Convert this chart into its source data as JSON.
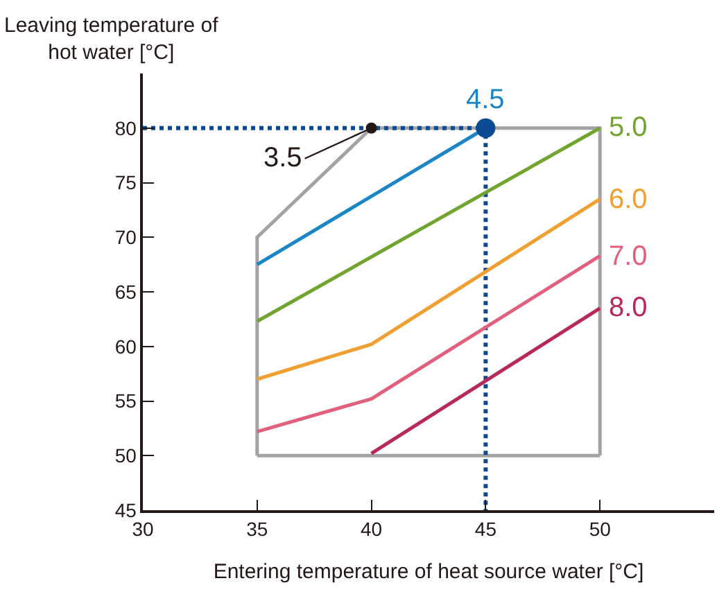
{
  "chart_data": {
    "type": "line",
    "xlabel": "Entering temperature of heat source water [°C]",
    "ylabel": "Leaving temperature of\nhot water [°C]",
    "xlim": [
      30,
      55
    ],
    "xticks": [
      30,
      35,
      40,
      45,
      50
    ],
    "ylim": [
      45,
      85
    ],
    "yticks": [
      45,
      50,
      55,
      60,
      65,
      70,
      75,
      80
    ],
    "legend": false,
    "marker": "none",
    "line_style": "solid",
    "series": [
      {
        "color": "#a3a3a3",
        "x": [
          35,
          35,
          40,
          50,
          50
        ],
        "values": [
          50,
          70,
          80,
          80,
          50
        ]
      },
      {
        "color": "#a3a3a3",
        "x": [
          35,
          50
        ],
        "values": [
          50,
          50
        ]
      },
      {
        "color": "#0d4a94",
        "line_style": "dotted",
        "x": [
          30,
          45,
          45
        ],
        "values": [
          80,
          80,
          45
        ]
      },
      {
        "name": "4.5",
        "color": "#1a86c6",
        "x": [
          35,
          45
        ],
        "values": [
          67.5,
          80
        ]
      },
      {
        "name": "5.0",
        "color": "#72a430",
        "x": [
          35,
          50
        ],
        "values": [
          62.3,
          80
        ]
      },
      {
        "name": "6.0",
        "color": "#f0a030",
        "x": [
          35,
          40,
          50
        ],
        "values": [
          57,
          60.2,
          73.5
        ]
      },
      {
        "name": "7.0",
        "color": "#e0607e",
        "x": [
          35,
          40,
          50
        ],
        "values": [
          52.2,
          55.2,
          68.3
        ]
      },
      {
        "name": "8.0",
        "color": "#b8285a",
        "x": [
          40,
          50
        ],
        "values": [
          50.2,
          63.5
        ]
      },
      {
        "type": "scatter",
        "color": "#0d4a94",
        "marker": "circle",
        "x": [
          45
        ],
        "values": [
          80
        ]
      },
      {
        "type": "scatter",
        "color": "#231815",
        "marker": "circle",
        "x": [
          40
        ],
        "values": [
          80
        ]
      }
    ],
    "annotations": [
      {
        "text": "3.5",
        "x": 40,
        "y": 80
      }
    ]
  }
}
